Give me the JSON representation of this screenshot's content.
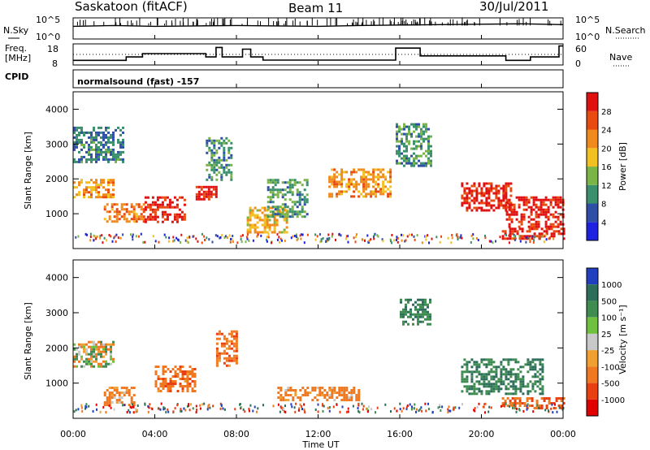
{
  "header": {
    "station": "Saskatoon (fitACF)",
    "beam": "Beam 11",
    "date": "30/Jul/2011"
  },
  "noise_panel": {
    "left_label": "N.Sky",
    "right_label": "N.Search",
    "left_ticks": [
      "10^5",
      "10^0"
    ],
    "right_ticks": [
      "10^5",
      "10^0"
    ]
  },
  "freq_panel": {
    "left_label_1": "Freq.",
    "left_label_2": "[MHz]",
    "right_label": "Nave",
    "left_ticks": [
      "18",
      "8"
    ],
    "right_ticks": [
      "60",
      "0"
    ]
  },
  "cpid": {
    "label": "CPID",
    "value": "normalsound (fast) -157"
  },
  "x_axis": {
    "label": "Time UT",
    "ticks": [
      "00:00",
      "04:00",
      "08:00",
      "12:00",
      "16:00",
      "20:00",
      "00:00"
    ]
  },
  "power_panel": {
    "ylabel": "Slant Range [km]",
    "yticks": [
      "1000",
      "2000",
      "3000",
      "4000"
    ],
    "colorbar_label": "Power [dB]",
    "colorbar_ticks": [
      "4",
      "8",
      "12",
      "16",
      "20",
      "24",
      "28"
    ],
    "colors": [
      "#1e22e0",
      "#2e4ea8",
      "#3a8f6c",
      "#7ab548",
      "#f2c020",
      "#f08a1c",
      "#e84a10",
      "#e01010"
    ]
  },
  "velocity_panel": {
    "ylabel": "Slant Range [km]",
    "yticks": [
      "1000",
      "2000",
      "3000",
      "4000"
    ],
    "colorbar_label": "Velocity [m s⁻¹]",
    "colorbar_ticks": [
      "1000",
      "500",
      "100",
      "25",
      "-25",
      "-100",
      "-500",
      "-1000"
    ],
    "colors": [
      "#2040c0",
      "#2c6e5a",
      "#3e8c50",
      "#70c040",
      "#c8c8c8",
      "#f0a030",
      "#f07820",
      "#e84010",
      "#e00000"
    ]
  },
  "chart_data": [
    {
      "type": "line",
      "title": "N.Sky / N.Search",
      "x": [
        0,
        2,
        4,
        6,
        8,
        10,
        12,
        14,
        16,
        18,
        20,
        22,
        24
      ],
      "series": [
        {
          "name": "N.Sky",
          "values": [
            3.0,
            3.2,
            3.0,
            3.1,
            3.2,
            3.1,
            3.0,
            3.2,
            3.3,
            3.4,
            3.5,
            3.6,
            3.4
          ]
        }
      ],
      "ylim": [
        0,
        5
      ],
      "xlabel": "Time UT"
    },
    {
      "type": "line",
      "title": "Freq. [MHz] / Nave",
      "series": [
        {
          "name": "Freq.",
          "points": [
            [
              0,
              10.2
            ],
            [
              2.6,
              10.2
            ],
            [
              2.6,
              11.8
            ],
            [
              3.4,
              11.8
            ],
            [
              3.4,
              13.4
            ],
            [
              6.5,
              13.4
            ],
            [
              6.5,
              11.8
            ],
            [
              7.0,
              11.8
            ],
            [
              7.0,
              16.3
            ],
            [
              7.3,
              16.3
            ],
            [
              7.3,
              11.8
            ],
            [
              8.3,
              11.8
            ],
            [
              8.3,
              15.5
            ],
            [
              8.7,
              15.5
            ],
            [
              8.7,
              11.8
            ],
            [
              9.3,
              11.8
            ],
            [
              9.3,
              10.3
            ],
            [
              15.8,
              10.3
            ],
            [
              15.8,
              16.0
            ],
            [
              17.0,
              16.0
            ],
            [
              17.0,
              12.3
            ],
            [
              21.2,
              12.3
            ],
            [
              21.2,
              10.2
            ],
            [
              22.4,
              10.2
            ],
            [
              22.4,
              11.8
            ],
            [
              23.8,
              11.8
            ],
            [
              23.8,
              17.0
            ],
            [
              24,
              17.0
            ]
          ]
        }
      ],
      "ylim": [
        8,
        18
      ],
      "reference_line": 12.0
    },
    {
      "type": "heatmap",
      "title": "Power [dB]",
      "x_range": [
        0,
        24
      ],
      "ylim": [
        0,
        4500
      ],
      "scale": [
        0,
        30
      ],
      "regions": [
        {
          "x": [
            0.0,
            2.0
          ],
          "y": [
            1500,
            2000
          ],
          "value": 20
        },
        {
          "x": [
            0.0,
            2.5
          ],
          "y": [
            2500,
            3500
          ],
          "value": 8
        },
        {
          "x": [
            1.5,
            3.5
          ],
          "y": [
            800,
            1300
          ],
          "value": 22
        },
        {
          "x": [
            3.5,
            5.5
          ],
          "y": [
            800,
            1500
          ],
          "value": 27
        },
        {
          "x": [
            6.0,
            7.0
          ],
          "y": [
            1400,
            1800
          ],
          "value": 28
        },
        {
          "x": [
            6.5,
            7.8
          ],
          "y": [
            2000,
            3200
          ],
          "value": 10
        },
        {
          "x": [
            8.5,
            10.5
          ],
          "y": [
            500,
            1200
          ],
          "value": 18
        },
        {
          "x": [
            9.5,
            11.5
          ],
          "y": [
            900,
            2000
          ],
          "value": 10
        },
        {
          "x": [
            12.5,
            15.5
          ],
          "y": [
            1500,
            2300
          ],
          "value": 20
        },
        {
          "x": [
            15.8,
            17.5
          ],
          "y": [
            2400,
            3600
          ],
          "value": 10
        },
        {
          "x": [
            19.0,
            21.5
          ],
          "y": [
            1100,
            1900
          ],
          "value": 27
        },
        {
          "x": [
            21.2,
            24.0
          ],
          "y": [
            600,
            1500
          ],
          "value": 28
        },
        {
          "x": [
            21.0,
            24.0
          ],
          "y": [
            300,
            600
          ],
          "value": 27
        }
      ]
    },
    {
      "type": "heatmap",
      "title": "Velocity [m s⁻¹]",
      "x_range": [
        0,
        24
      ],
      "ylim": [
        0,
        4500
      ],
      "scale": [
        -1000,
        1000
      ],
      "regions": [
        {
          "x": [
            0.0,
            2.0
          ],
          "y": [
            1500,
            2200
          ],
          "value": 0
        },
        {
          "x": [
            1.5,
            3.0
          ],
          "y": [
            400,
            900
          ],
          "value": -150
        },
        {
          "x": [
            4.0,
            6.0
          ],
          "y": [
            800,
            1500
          ],
          "value": -200
        },
        {
          "x": [
            7.0,
            8.0
          ],
          "y": [
            1500,
            2500
          ],
          "value": -200
        },
        {
          "x": [
            10.0,
            14.0
          ],
          "y": [
            500,
            900
          ],
          "value": -150
        },
        {
          "x": [
            16.0,
            17.5
          ],
          "y": [
            2700,
            3400
          ],
          "value": 300
        },
        {
          "x": [
            19.0,
            23.0
          ],
          "y": [
            700,
            1700
          ],
          "value": 300
        },
        {
          "x": [
            21.0,
            24.0
          ],
          "y": [
            300,
            600
          ],
          "value": -300
        }
      ]
    }
  ]
}
